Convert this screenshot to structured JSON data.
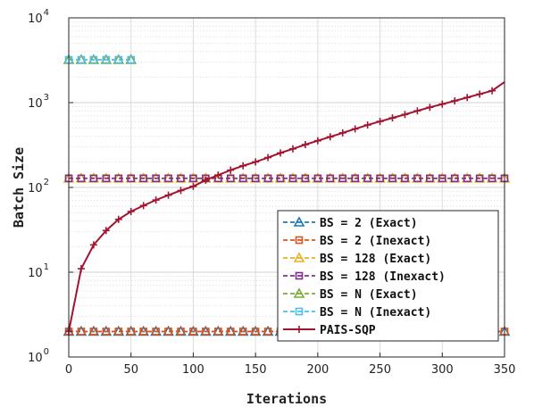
{
  "chart_data": {
    "type": "line",
    "xlabel": "Iterations",
    "ylabel": "Batch Size",
    "xlim": [
      0,
      350
    ],
    "ylim": [
      1,
      10000
    ],
    "yscale": "log",
    "xticks": [
      0,
      50,
      100,
      150,
      200,
      250,
      300,
      350
    ],
    "yticks": [
      {
        "value": 1,
        "base": "10",
        "exp": "0"
      },
      {
        "value": 10,
        "base": "10",
        "exp": "1"
      },
      {
        "value": 100,
        "base": "10",
        "exp": "2"
      },
      {
        "value": 1000,
        "base": "10",
        "exp": "3"
      },
      {
        "value": 10000,
        "base": "10",
        "exp": "4"
      }
    ],
    "grid": true,
    "legend_position": "bottom-right",
    "series": [
      {
        "name": "BS = 2 (Exact)",
        "color": "#1f77b4",
        "marker": "triangle",
        "dashed": true,
        "x": [
          0,
          350
        ],
        "y": [
          2,
          2
        ],
        "marker_x": [
          0,
          10,
          20,
          30,
          40,
          50,
          60,
          70,
          80,
          90,
          100,
          110,
          120,
          130,
          140,
          150,
          160,
          170,
          180,
          190,
          200,
          210,
          220,
          230,
          240,
          250,
          260,
          270,
          280,
          290,
          300,
          310,
          320,
          330,
          340,
          350
        ]
      },
      {
        "name": "BS = 2 (Inexact)",
        "color": "#d95319",
        "marker": "square",
        "dashed": true,
        "x": [
          0,
          350
        ],
        "y": [
          2,
          2
        ],
        "marker_x": [
          0,
          10,
          20,
          30,
          40,
          50,
          60,
          70,
          80,
          90,
          100,
          110,
          120,
          130,
          140,
          150,
          160,
          170,
          180,
          190,
          200,
          210,
          220,
          230,
          240,
          250,
          260,
          270,
          280,
          290,
          300,
          310,
          320,
          330,
          340,
          350
        ]
      },
      {
        "name": "BS = 128 (Exact)",
        "color": "#edb120",
        "marker": "triangle",
        "dashed": true,
        "x": [
          0,
          350
        ],
        "y": [
          128,
          128
        ],
        "marker_x": [
          0,
          10,
          20,
          30,
          40,
          50,
          60,
          70,
          80,
          90,
          100,
          110,
          120,
          130,
          140,
          150,
          160,
          170,
          180,
          190,
          200,
          210,
          220,
          230,
          240,
          250,
          260,
          270,
          280,
          290,
          300,
          310,
          320,
          330,
          340,
          350
        ]
      },
      {
        "name": "BS = 128 (Inexact)",
        "color": "#7e2f8e",
        "marker": "square",
        "dashed": true,
        "x": [
          0,
          350
        ],
        "y": [
          128,
          128
        ],
        "marker_x": [
          0,
          10,
          20,
          30,
          40,
          50,
          60,
          70,
          80,
          90,
          100,
          110,
          120,
          130,
          140,
          150,
          160,
          170,
          180,
          190,
          200,
          210,
          220,
          230,
          240,
          250,
          260,
          270,
          280,
          290,
          300,
          310,
          320,
          330,
          340,
          350
        ]
      },
      {
        "name": "BS = N (Exact)",
        "color": "#77ac30",
        "marker": "triangle",
        "dashed": true,
        "x": [
          0,
          50
        ],
        "y": [
          3200,
          3200
        ],
        "marker_x": [
          0,
          10,
          20,
          30,
          40,
          50
        ]
      },
      {
        "name": "BS = N (Inexact)",
        "color": "#4dbeee",
        "marker": "square",
        "dashed": true,
        "x": [
          0,
          50
        ],
        "y": [
          3200,
          3200
        ],
        "marker_x": [
          0,
          10,
          20,
          30,
          40,
          50
        ]
      },
      {
        "name": "PAIS-SQP",
        "color": "#a2142f",
        "marker": "plus",
        "dashed": false,
        "x": [
          0,
          10,
          20,
          30,
          40,
          50,
          60,
          70,
          80,
          90,
          100,
          110,
          120,
          130,
          140,
          150,
          160,
          170,
          180,
          190,
          200,
          210,
          220,
          230,
          240,
          250,
          260,
          270,
          280,
          290,
          300,
          310,
          320,
          330,
          340,
          350
        ],
        "y": [
          2,
          11,
          21,
          31,
          42,
          52,
          61,
          71,
          81,
          92,
          103,
          122,
          140,
          160,
          180,
          200,
          225,
          255,
          285,
          320,
          355,
          395,
          440,
          490,
          545,
          600,
          660,
          725,
          800,
          880,
          960,
          1050,
          1150,
          1260,
          1380,
          1750
        ]
      }
    ]
  }
}
